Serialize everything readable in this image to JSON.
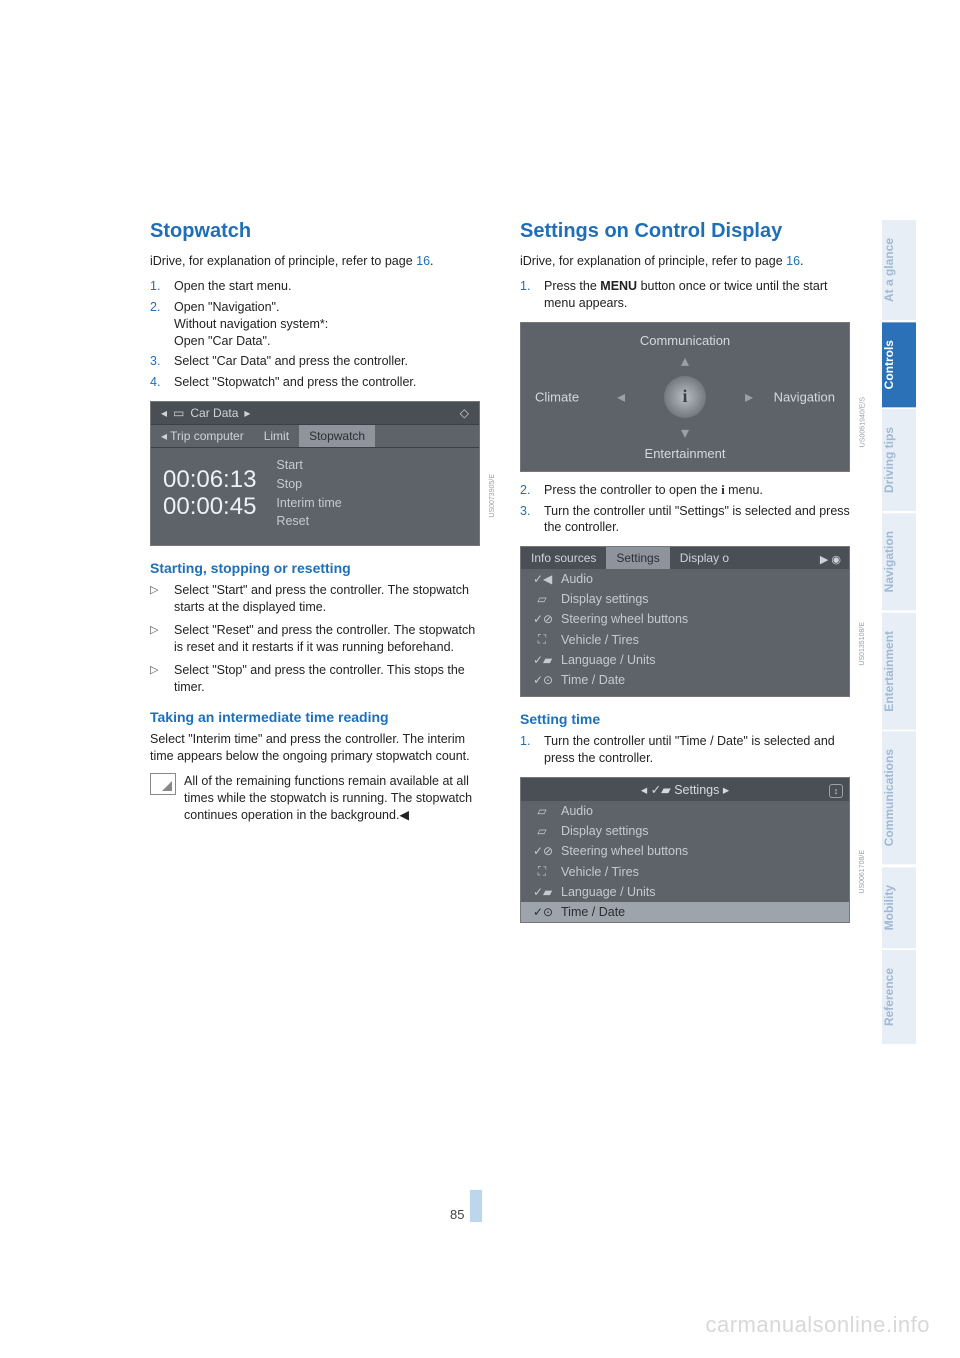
{
  "page_number": "85",
  "watermark": "carmanualsonline.info",
  "tabs": [
    {
      "label": "At a glance",
      "active": false
    },
    {
      "label": "Controls",
      "active": true
    },
    {
      "label": "Driving tips",
      "active": false
    },
    {
      "label": "Navigation",
      "active": false
    },
    {
      "label": "Entertainment",
      "active": false
    },
    {
      "label": "Communications",
      "active": false
    },
    {
      "label": "Mobility",
      "active": false
    },
    {
      "label": "Reference",
      "active": false
    }
  ],
  "left": {
    "title": "Stopwatch",
    "intro_a": "iDrive, for explanation of principle, refer to page ",
    "intro_link": "16",
    "intro_b": ".",
    "steps": [
      "Open the start menu.",
      "Open \"Navigation\".\nWithout navigation system*:\nOpen \"Car Data\".",
      "Select \"Car Data\" and press the controller.",
      "Select \"Stopwatch\" and press the controller."
    ],
    "shot": {
      "header": "Car Data",
      "tabs": [
        "Trip computer",
        "Limit",
        "Stopwatch"
      ],
      "selected_tab": 2,
      "time_main": "00:06:13",
      "time_sub": "00:00:45",
      "options": [
        "Start",
        "Stop",
        "Interim time",
        "Reset"
      ],
      "code": "US0073905/E"
    },
    "sub1": "Starting, stopping or resetting",
    "bullets1": [
      "Select \"Start\" and press the controller. The stopwatch starts at the displayed time.",
      "Select \"Reset\" and press the controller. The stopwatch is reset and it restarts if it was running beforehand.",
      "Select \"Stop\" and press the controller. This stops the timer."
    ],
    "sub2": "Taking an intermediate time reading",
    "para2": "Select \"Interim time\" and press the controller. The interim time appears below the ongoing primary stopwatch count.",
    "note": "All of the remaining functions remain available at all times while the stopwatch is running. The stopwatch continues operation in the background.◀"
  },
  "right": {
    "title": "Settings on Control Display",
    "intro_a": "iDrive, for explanation of principle, refer to page ",
    "intro_link": "16",
    "intro_b": ".",
    "step1_a": "Press the ",
    "step1_bold": "MENU",
    "step1_b": " button once or twice until the start menu appears.",
    "idrive": {
      "top": "Communication",
      "left": "Climate",
      "right": "Navigation",
      "bottom": "Entertainment",
      "code": "US0061940/E/S"
    },
    "step2_a": "Press the controller to open the ",
    "step2_b": " menu.",
    "step3": "Turn the controller until \"Settings\" is selected and press the controller.",
    "shot2": {
      "tabs": [
        "Info sources",
        "Settings",
        "Display o"
      ],
      "selected_tab": 1,
      "rows": [
        {
          "icon": "✓◀",
          "label": "Audio"
        },
        {
          "icon": "▱",
          "label": "Display settings"
        },
        {
          "icon": "✓⊘",
          "label": "Steering wheel buttons"
        },
        {
          "icon": "⛶",
          "label": "Vehicle / Tires"
        },
        {
          "icon": "✓▰",
          "label": "Language / Units"
        },
        {
          "icon": "✓⊙",
          "label": "Time / Date"
        }
      ],
      "code": "US0135108/E"
    },
    "sub1": "Setting time",
    "step_s1": "Turn the controller until \"Time / Date\" is selected and press the controller.",
    "shot3": {
      "header": "Settings",
      "rows": [
        {
          "icon": "▱",
          "label": "Audio"
        },
        {
          "icon": "▱",
          "label": "Display settings"
        },
        {
          "icon": "✓⊘",
          "label": "Steering wheel buttons"
        },
        {
          "icon": "⛶",
          "label": "Vehicle / Tires"
        },
        {
          "icon": "✓▰",
          "label": "Language / Units"
        },
        {
          "icon": "✓⊙",
          "label": "Time / Date",
          "hi": true
        }
      ],
      "code": "US0061708/E"
    }
  }
}
